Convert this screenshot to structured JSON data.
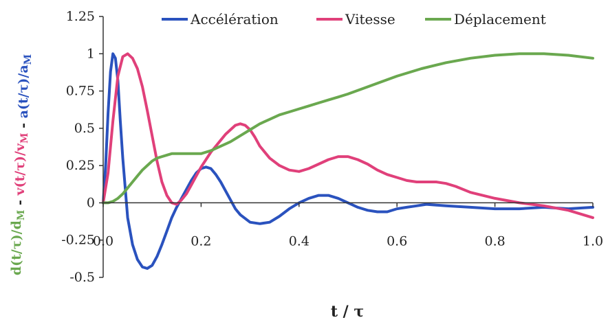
{
  "chart_data": {
    "type": "line",
    "xlabel": "t / τ",
    "ylabel_parts": [
      {
        "text": "d(t/τ)/d",
        "sub": "M",
        "color": "#6aa84f"
      },
      {
        "text": " - ",
        "color": "#222222"
      },
      {
        "text": "v(t/τ)/v",
        "sub": "M",
        "color": "#e0407a"
      },
      {
        "text": " - ",
        "color": "#222222"
      },
      {
        "text": "a(t/τ)/a",
        "sub": "M",
        "color": "#2a52be"
      }
    ],
    "xlim": [
      0.0,
      1.0
    ],
    "ylim": [
      -0.5,
      1.25
    ],
    "xticks": [
      {
        "value": 0.0,
        "label": "0.0"
      },
      {
        "value": 0.2,
        "label": "0.2"
      },
      {
        "value": 0.4,
        "label": "0.4"
      },
      {
        "value": 0.6,
        "label": "0.6"
      },
      {
        "value": 0.8,
        "label": "0.8"
      },
      {
        "value": 1.0,
        "label": "1.0"
      }
    ],
    "yticks": [
      {
        "value": 1.25,
        "label": "1.25"
      },
      {
        "value": 1.0,
        "label": "1"
      },
      {
        "value": 0.75,
        "label": "0.75"
      },
      {
        "value": 0.5,
        "label": "0.5"
      },
      {
        "value": 0.25,
        "label": "0.25"
      },
      {
        "value": 0.0,
        "label": "0"
      },
      {
        "value": -0.25,
        "label": "-0.25"
      },
      {
        "value": -0.5,
        "label": "-0.5"
      }
    ],
    "legend_position": "top",
    "grid": false,
    "series": [
      {
        "name": "Accélération",
        "color": "#2a52be",
        "x": [
          0,
          0.005,
          0.01,
          0.015,
          0.02,
          0.025,
          0.03,
          0.035,
          0.04,
          0.05,
          0.06,
          0.07,
          0.08,
          0.09,
          0.1,
          0.11,
          0.12,
          0.13,
          0.14,
          0.15,
          0.16,
          0.17,
          0.18,
          0.19,
          0.2,
          0.21,
          0.22,
          0.23,
          0.24,
          0.25,
          0.26,
          0.27,
          0.28,
          0.3,
          0.32,
          0.34,
          0.36,
          0.38,
          0.4,
          0.42,
          0.44,
          0.46,
          0.48,
          0.5,
          0.52,
          0.54,
          0.56,
          0.58,
          0.6,
          0.62,
          0.64,
          0.66,
          0.7,
          0.75,
          0.8,
          0.85,
          0.9,
          0.95,
          1.0
        ],
        "y": [
          0,
          0.25,
          0.6,
          0.88,
          1.0,
          0.97,
          0.82,
          0.55,
          0.3,
          -0.1,
          -0.28,
          -0.38,
          -0.43,
          -0.44,
          -0.42,
          -0.36,
          -0.28,
          -0.19,
          -0.1,
          -0.03,
          0.03,
          0.09,
          0.15,
          0.2,
          0.23,
          0.24,
          0.23,
          0.19,
          0.14,
          0.08,
          0.02,
          -0.04,
          -0.08,
          -0.13,
          -0.14,
          -0.13,
          -0.09,
          -0.04,
          0.0,
          0.03,
          0.05,
          0.05,
          0.03,
          0.0,
          -0.03,
          -0.05,
          -0.06,
          -0.06,
          -0.04,
          -0.03,
          -0.02,
          -0.01,
          -0.02,
          -0.03,
          -0.04,
          -0.04,
          -0.03,
          -0.04,
          -0.03
        ]
      },
      {
        "name": "Vitesse",
        "color": "#e0407a",
        "x": [
          0,
          0.01,
          0.02,
          0.03,
          0.04,
          0.05,
          0.06,
          0.07,
          0.08,
          0.09,
          0.1,
          0.11,
          0.12,
          0.13,
          0.14,
          0.15,
          0.16,
          0.17,
          0.18,
          0.19,
          0.2,
          0.21,
          0.22,
          0.23,
          0.24,
          0.25,
          0.26,
          0.27,
          0.28,
          0.29,
          0.3,
          0.31,
          0.32,
          0.34,
          0.36,
          0.38,
          0.4,
          0.42,
          0.44,
          0.46,
          0.48,
          0.5,
          0.52,
          0.54,
          0.56,
          0.58,
          0.6,
          0.62,
          0.64,
          0.66,
          0.68,
          0.7,
          0.72,
          0.75,
          0.8,
          0.85,
          0.9,
          0.95,
          1.0
        ],
        "y": [
          0,
          0.2,
          0.55,
          0.85,
          0.98,
          1.0,
          0.97,
          0.9,
          0.78,
          0.62,
          0.45,
          0.28,
          0.14,
          0.05,
          0.0,
          -0.01,
          0.02,
          0.06,
          0.12,
          0.18,
          0.24,
          0.29,
          0.34,
          0.38,
          0.42,
          0.46,
          0.49,
          0.52,
          0.53,
          0.52,
          0.49,
          0.44,
          0.38,
          0.3,
          0.25,
          0.22,
          0.21,
          0.23,
          0.26,
          0.29,
          0.31,
          0.31,
          0.29,
          0.26,
          0.22,
          0.19,
          0.17,
          0.15,
          0.14,
          0.14,
          0.14,
          0.13,
          0.11,
          0.07,
          0.03,
          0.0,
          -0.02,
          -0.05,
          -0.1
        ]
      },
      {
        "name": "Déplacement",
        "color": "#6aa84f",
        "x": [
          0,
          0.01,
          0.02,
          0.03,
          0.04,
          0.05,
          0.06,
          0.07,
          0.08,
          0.09,
          0.1,
          0.11,
          0.12,
          0.13,
          0.14,
          0.15,
          0.16,
          0.18,
          0.2,
          0.22,
          0.24,
          0.26,
          0.28,
          0.3,
          0.32,
          0.34,
          0.36,
          0.38,
          0.4,
          0.42,
          0.44,
          0.46,
          0.48,
          0.5,
          0.55,
          0.6,
          0.65,
          0.7,
          0.75,
          0.8,
          0.85,
          0.9,
          0.95,
          1.0
        ],
        "y": [
          0,
          0.0,
          0.01,
          0.03,
          0.06,
          0.1,
          0.14,
          0.18,
          0.22,
          0.25,
          0.28,
          0.3,
          0.31,
          0.32,
          0.33,
          0.33,
          0.33,
          0.33,
          0.33,
          0.35,
          0.38,
          0.41,
          0.45,
          0.49,
          0.53,
          0.56,
          0.59,
          0.61,
          0.63,
          0.65,
          0.67,
          0.69,
          0.71,
          0.73,
          0.79,
          0.85,
          0.9,
          0.94,
          0.97,
          0.99,
          1.0,
          1.0,
          0.99,
          0.97
        ]
      }
    ]
  }
}
